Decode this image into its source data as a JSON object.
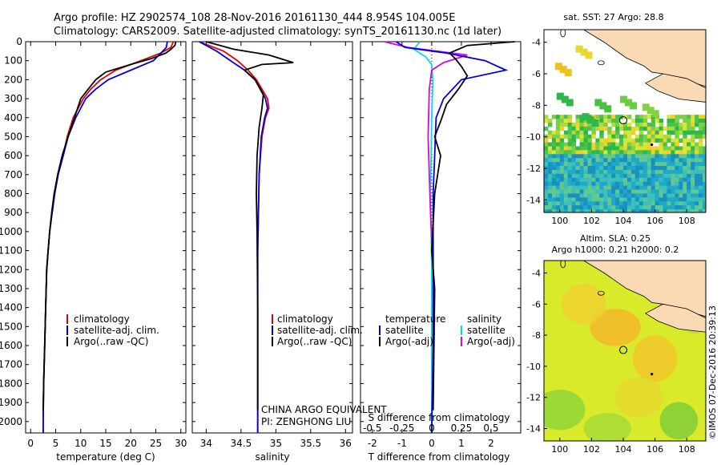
{
  "header": {
    "line1": "Argo profile: HZ 2902574_108 28-Nov-2016 20161130_444 8.954S 104.005E",
    "line2": "Climatology: CARS2009. Satellite-adjusted climatology: synTS_20161130.nc (1d later)"
  },
  "depth_ticks": [
    0,
    100,
    200,
    300,
    400,
    500,
    600,
    700,
    800,
    900,
    1000,
    1100,
    1200,
    1300,
    1400,
    1500,
    1600,
    1700,
    1800,
    1900,
    2000
  ],
  "credit": "©IMOS 07-Dec-2016 20:39:13",
  "colors": {
    "climatology": "#e00000",
    "satellite": "#0000e0",
    "argo": "#000000",
    "sat_s": "#00e0e0",
    "argo_s": "#e000e0"
  },
  "panels": {
    "temperature": {
      "xlabel": "temperature (deg C)",
      "xticks": [
        "0",
        "5",
        "10",
        "15",
        "20",
        "25",
        "30"
      ],
      "legend": [
        "climatology",
        "satellite-adj. clim.",
        "Argo(..raw -QC)"
      ]
    },
    "salinity": {
      "xlabel": "salinity",
      "xticks": [
        "34",
        "34.5",
        "35",
        "35.5",
        "36"
      ],
      "legend": [
        "climatology",
        "satellite-adj. clim.",
        "Argo(..raw -QC)"
      ],
      "note1": "CHINA ARGO EQUIVALENT",
      "note2": "PI: ZENGHONG LIU"
    },
    "difference": {
      "top_label": "S difference from climatology",
      "s_ticks": [
        "-0.5",
        "-0.25",
        "0",
        "0.25",
        "0.5"
      ],
      "t_ticks": [
        "-2",
        "-1",
        "0",
        "1",
        "2"
      ],
      "xlabel": "T difference from climatology",
      "legend_t_head": "temperature",
      "legend_s_head": "salinity",
      "legend_t": [
        "satellite",
        "Argo(-adj)"
      ],
      "legend_s": [
        "satellite",
        "Argo(-adj)"
      ]
    },
    "sst_map": {
      "title": "sat. SST: 27 Argo: 28.8",
      "yticks": [
        "-4",
        "-6",
        "-8",
        "-10",
        "-12",
        "-14"
      ],
      "xticks": [
        "100",
        "102",
        "104",
        "106",
        "108"
      ]
    },
    "sla_map": {
      "title1": "Altim. SLA: 0.25",
      "title2": "Argo h1000: 0.21 h2000: 0.2",
      "yticks": [
        "-4",
        "-6",
        "-8",
        "-10",
        "-12",
        "-14"
      ],
      "xticks": [
        "100",
        "102",
        "104",
        "106",
        "108"
      ]
    }
  },
  "chart_data": [
    {
      "type": "line",
      "xlabel": "temperature (deg C)",
      "ylabel": "",
      "xlim": [
        -1,
        31
      ],
      "ylim": [
        2060,
        0
      ],
      "series": [
        {
          "name": "climatology",
          "x": [
            28.5,
            28,
            26,
            22,
            17,
            14,
            12,
            10.5,
            9.5,
            8.5,
            7.3,
            6.5,
            5.5,
            4.8,
            4.3,
            3.8,
            3.5,
            3.2,
            3.0,
            2.8,
            2.6,
            2.5,
            2.5
          ],
          "y": [
            0,
            30,
            60,
            100,
            150,
            200,
            250,
            300,
            350,
            400,
            500,
            600,
            700,
            800,
            900,
            1000,
            1100,
            1200,
            1400,
            1600,
            1800,
            2000,
            2060
          ]
        },
        {
          "name": "satellite-adj. clim.",
          "x": [
            27.3,
            27.1,
            26,
            24.5,
            20,
            15.5,
            13,
            11,
            10,
            9,
            7.5,
            6.5,
            5.5,
            4.8,
            4.3,
            3.8,
            3.5,
            3.2,
            3.0,
            2.8,
            2.6,
            2.5,
            2.5
          ],
          "y": [
            0,
            30,
            60,
            100,
            150,
            200,
            250,
            300,
            350,
            400,
            500,
            600,
            700,
            800,
            900,
            1000,
            1100,
            1200,
            1400,
            1600,
            1800,
            2000,
            2060
          ]
        },
        {
          "name": "Argo(..raw -QC)",
          "x": [
            29,
            28.8,
            28,
            27,
            24,
            20,
            15,
            13,
            11.5,
            10,
            9,
            7.5,
            6.3,
            5.4,
            4.7,
            4.2,
            3.8,
            3.5,
            3.2,
            3.0,
            2.8,
            2.6,
            2.5
          ],
          "y": [
            0,
            20,
            40,
            60,
            90,
            120,
            160,
            200,
            250,
            300,
            380,
            500,
            600,
            700,
            800,
            900,
            1000,
            1100,
            1200,
            1400,
            1600,
            1800,
            1940
          ]
        }
      ]
    },
    {
      "type": "line",
      "xlabel": "salinity",
      "ylabel": "",
      "xlim": [
        33.8,
        36.1
      ],
      "ylim": [
        2060,
        0
      ],
      "series": [
        {
          "name": "climatology",
          "x": [
            33.9,
            34.25,
            34.45,
            34.6,
            34.72,
            34.8,
            34.88,
            34.9,
            34.85,
            34.8,
            34.76,
            34.75,
            34.74,
            34.74,
            34.74,
            34.74
          ],
          "y": [
            0,
            50,
            100,
            150,
            200,
            250,
            300,
            350,
            400,
            500,
            700,
            900,
            1100,
            1400,
            1800,
            2060
          ]
        },
        {
          "name": "satellite-adj. clim.",
          "x": [
            33.9,
            34.15,
            34.35,
            34.55,
            34.7,
            34.78,
            34.85,
            34.88,
            34.84,
            34.79,
            34.76,
            34.75,
            34.74,
            34.74,
            34.74,
            34.74
          ],
          "y": [
            0,
            50,
            100,
            150,
            200,
            250,
            300,
            350,
            400,
            500,
            700,
            900,
            1100,
            1400,
            1800,
            2060
          ]
        },
        {
          "name": "Argo(..raw -QC)",
          "x": [
            34.0,
            34.4,
            34.9,
            35.25,
            34.8,
            34.55,
            34.7,
            34.82,
            34.8,
            34.76,
            34.73,
            34.72,
            34.73,
            34.74,
            34.74
          ],
          "y": [
            0,
            40,
            70,
            110,
            120,
            150,
            200,
            280,
            350,
            450,
            600,
            800,
            1000,
            1400,
            1940
          ]
        }
      ]
    },
    {
      "type": "line",
      "xlabel": "T difference from climatology",
      "ylabel": "",
      "xlim": [
        -2.4,
        3.0
      ],
      "ylim": [
        2060,
        0
      ],
      "series": [
        {
          "name": "satellite",
          "x": [
            -1.2,
            -0.9,
            0.5,
            1.8,
            2.5,
            1.0,
            0.4,
            0.15,
            0.1,
            0.05,
            0.05,
            0.05,
            0.0
          ],
          "y": [
            0,
            30,
            60,
            100,
            150,
            200,
            300,
            400,
            600,
            800,
            1200,
            1600,
            2060
          ]
        },
        {
          "name": "Argo(-adj)",
          "x": [
            2.8,
            1.2,
            0.6,
            0.8,
            1.0,
            1.2,
            0.9,
            0.5,
            0.3,
            0.1,
            0.3,
            0.1,
            0.0,
            0.1,
            0.05
          ],
          "y": [
            0,
            20,
            60,
            90,
            130,
            180,
            250,
            330,
            420,
            500,
            600,
            800,
            1100,
            1300,
            1940
          ]
        }
      ]
    },
    {
      "type": "line",
      "xlabel": "S difference from climatology",
      "ylabel": "",
      "xlim": [
        -0.6,
        0.75
      ],
      "ylim": [
        2060,
        0
      ],
      "series": [
        {
          "name": "satellite",
          "x": [
            -0.1,
            -0.15,
            -0.05,
            0.0,
            0.01,
            0.0,
            -0.01,
            0.0,
            0.0,
            0.0
          ],
          "y": [
            0,
            40,
            80,
            120,
            200,
            400,
            800,
            1200,
            1600,
            2060
          ]
        },
        {
          "name": "Argo(-adj)",
          "x": [
            -0.4,
            -0.2,
            0.3,
            0.1,
            0.0,
            -0.02,
            -0.03,
            -0.01,
            0.02,
            0.01
          ],
          "y": [
            0,
            30,
            70,
            110,
            150,
            250,
            500,
            900,
            1300,
            1940
          ]
        }
      ]
    }
  ]
}
